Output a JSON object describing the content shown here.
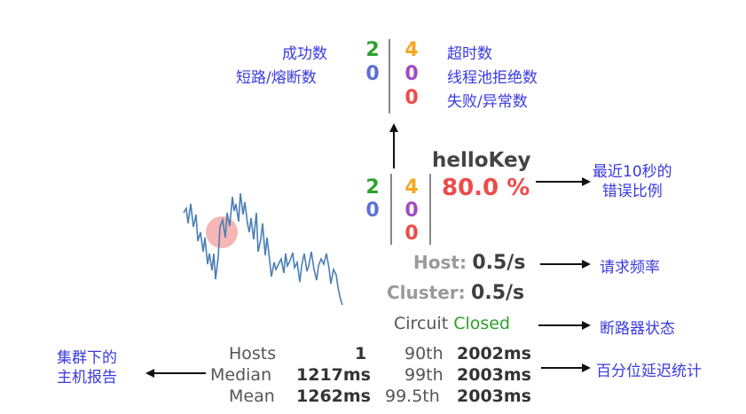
{
  "top_block": {
    "left_labels": [
      "成功数",
      "短路/熔断数"
    ],
    "right_labels": [
      "超时数",
      "线程池拒绝数",
      "失败/异常数"
    ],
    "success": "2",
    "short_circuited": "0",
    "timeout": "4",
    "thread_pool_rejected": "0",
    "failure": "0"
  },
  "circuit_panel": {
    "name": "helloKey",
    "success": "2",
    "short_circuited": "0",
    "timeout": "4",
    "rejected": "0",
    "failure": "0",
    "error_pct": "80.0 %",
    "host_label": "Host:",
    "host_rate": "0.5/s",
    "cluster_label": "Cluster:",
    "cluster_rate": "0.5/s",
    "circuit_label": "Circuit",
    "circuit_status": "Closed"
  },
  "annotations": {
    "error_pct": "最近10秒的\n错误比例",
    "request_rate": "请求频率",
    "breaker_state": "断路器状态",
    "cluster_report": "集群下的\n主机报告",
    "percentile_stats": "百分位延迟统计"
  },
  "stats": {
    "hosts_label": "Hosts",
    "hosts_value": "1",
    "median_label": "Median",
    "median_value": "1217ms",
    "mean_label": "Mean",
    "mean_value": "1262ms",
    "p90_label": "90th",
    "p90_value": "2002ms",
    "p99_label": "99th",
    "p99_value": "2003ms",
    "p995_label": "99.5th",
    "p995_value": "2003ms"
  },
  "colors": {
    "success": "#2ca02c",
    "short_circuited": "#5b6fd6",
    "timeout": "#f4a623",
    "rejected": "#a24ac4",
    "failure": "#ee4b4b",
    "annotation": "#3a3adf",
    "sparkline": "#4a7fb5",
    "health_circle": "#f5a9a9"
  }
}
